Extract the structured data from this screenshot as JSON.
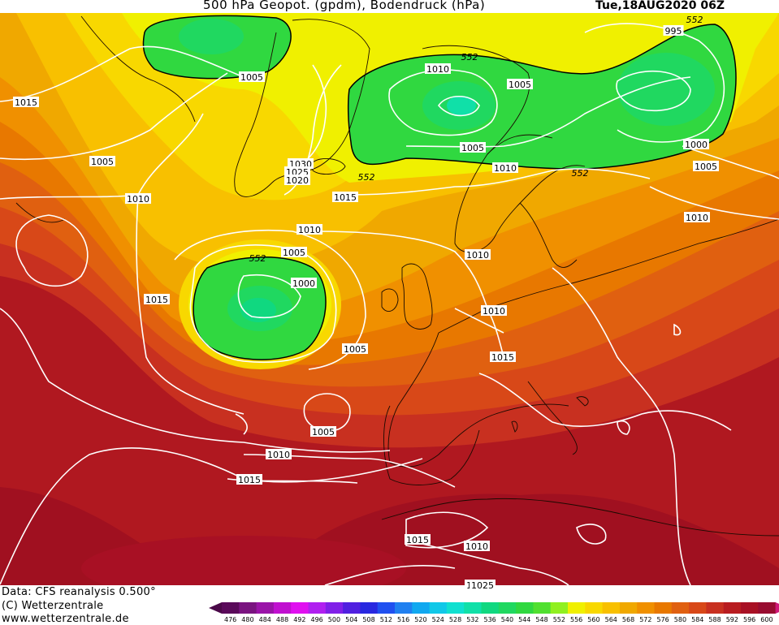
{
  "header": {
    "title_left": "500 hPa Geopot. (gpdm), Bodendruck (hPa)",
    "title_right": "Tue,18AUG2020 06Z"
  },
  "footer": {
    "line1": "Data: CFS reanalysis 0.500°",
    "line2": "(C) Wetterzentrale",
    "line3": "www.wetterzentrale.de"
  },
  "legend": {
    "values": [
      "476",
      "480",
      "484",
      "488",
      "492",
      "496",
      "500",
      "504",
      "508",
      "512",
      "516",
      "520",
      "524",
      "528",
      "532",
      "536",
      "540",
      "544",
      "548",
      "552",
      "556",
      "560",
      "564",
      "568",
      "572",
      "576",
      "580",
      "584",
      "588",
      "592",
      "596",
      "600"
    ],
    "colors": [
      "#5a0a5a",
      "#7a1480",
      "#9a14a8",
      "#c010d0",
      "#e010f0",
      "#b020f0",
      "#8020e8",
      "#5020e0",
      "#2828e0",
      "#2050f0",
      "#2080f0",
      "#10a8f0",
      "#10c8e8",
      "#10e0d0",
      "#10e0a8",
      "#10d880",
      "#20d860",
      "#30d840",
      "#50e030",
      "#90f020",
      "#f0f000",
      "#f8d800",
      "#f8c000",
      "#f0a800",
      "#f09000",
      "#e87800",
      "#e06010",
      "#d84818",
      "#c83020",
      "#b81c20",
      "#a81024",
      "#980c30"
    ]
  },
  "isobar_labels": [
    {
      "text": "1005"
    },
    {
      "text": "1015"
    },
    {
      "text": "1005"
    },
    {
      "text": "1010"
    },
    {
      "text": "1030"
    },
    {
      "text": "1025"
    },
    {
      "text": "1020"
    },
    {
      "text": "1015"
    },
    {
      "text": "1010"
    },
    {
      "text": "1005"
    },
    {
      "text": "1000"
    },
    {
      "text": "1015"
    },
    {
      "text": "1005"
    },
    {
      "text": "1005"
    },
    {
      "text": "1010"
    },
    {
      "text": "1015"
    },
    {
      "text": "1010"
    },
    {
      "text": "1005"
    },
    {
      "text": "1010"
    },
    {
      "text": "1005"
    },
    {
      "text": "1010"
    },
    {
      "text": "1010"
    },
    {
      "text": "1010"
    },
    {
      "text": "1015"
    },
    {
      "text": "995"
    },
    {
      "text": "1000"
    },
    {
      "text": "1005"
    },
    {
      "text": "1010"
    },
    {
      "text": "1015"
    },
    {
      "text": "1010"
    },
    {
      "text": "1025"
    }
  ],
  "geopotential_labels": [
    {
      "text": "552"
    },
    {
      "text": "552"
    },
    {
      "text": "552"
    },
    {
      "text": "552"
    },
    {
      "text": "552"
    }
  ]
}
